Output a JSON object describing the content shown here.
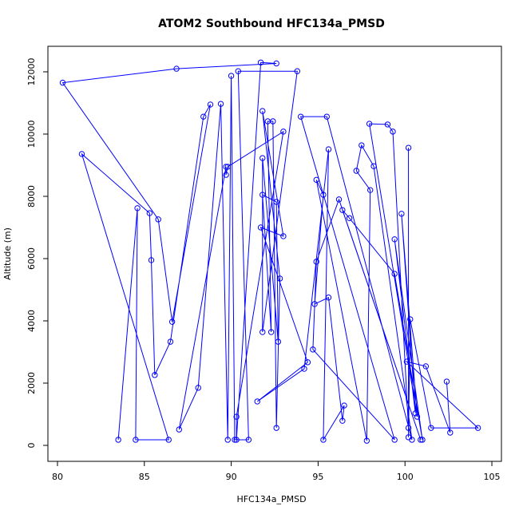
{
  "chart_data": {
    "type": "line",
    "title": "ATOM2 Southbound HFC134a_PMSD",
    "x_label": "HFC134a_PMSD",
    "y_label": "Altitude (m)",
    "color": "#0000ff",
    "markers": true,
    "x": [
      83.5,
      84.6,
      84.5,
      86.4,
      81.4,
      85.3,
      85.4,
      85.6,
      86.5,
      88.4,
      88.8,
      86.6,
      85.8,
      80.3,
      86.85,
      92.6,
      91.7,
      90.3,
      90.3,
      93.0,
      89.8,
      89.7,
      89.7,
      87.0,
      88.1,
      89.4,
      89.8,
      90.0,
      90.2,
      91.0,
      90.4,
      93.8,
      91.8,
      91.8,
      92.7,
      92.6,
      91.8,
      92.3,
      92.1,
      92.4,
      92.6,
      92.8,
      91.8,
      93.0,
      91.7,
      94.4,
      91.5,
      94.2,
      95.6,
      95.3,
      96.5,
      96.4,
      95.6,
      94.8,
      95.3,
      94.9,
      97.8,
      98.0,
      97.2,
      97.5,
      98.2,
      100.4,
      95.5,
      94.0,
      99.4,
      94.7,
      94.9,
      96.2,
      100.9,
      96.4,
      96.8,
      99.4,
      101.0,
      99.4,
      100.6,
      99.8,
      100.7,
      97.95,
      99.0,
      99.3,
      100.2,
      100.2,
      100.2,
      100.3,
      101.5,
      104.2,
      100.1,
      101.2,
      102.6,
      102.4
    ],
    "values": [
      180,
      7620,
      180,
      180,
      9360,
      7460,
      5950,
      2260,
      3330,
      10560,
      10950,
      3970,
      7260,
      11650,
      12100,
      12270,
      12300,
      180,
      920,
      10080,
      8950,
      8690,
      8950,
      510,
      1850,
      10970,
      180,
      11870,
      180,
      180,
      12020,
      12020,
      3640,
      9230,
      3330,
      7820,
      8050,
      3640,
      10410,
      10410,
      560,
      5360,
      10740,
      6720,
      7000,
      2670,
      1410,
      2460,
      9510,
      180,
      1280,
      790,
      4750,
      4540,
      8050,
      8530,
      150,
      8200,
      8820,
      9640,
      8970,
      180,
      10560,
      10560,
      180,
      3080,
      5900,
      7900,
      180,
      7560,
      7300,
      5510,
      180,
      6620,
      1030,
      7440,
      920,
      10330,
      10310,
      10080,
      560,
      9560,
      260,
      4050,
      560,
      560,
      2690,
      2540,
      410,
      2050
    ],
    "xlim": [
      79.45,
      105.55
    ],
    "ylim": [
      -513,
      12820
    ],
    "xticks": [
      80,
      85,
      90,
      95,
      100,
      105
    ],
    "yticks": [
      0,
      2000,
      4000,
      6000,
      8000,
      10000,
      12000
    ]
  }
}
